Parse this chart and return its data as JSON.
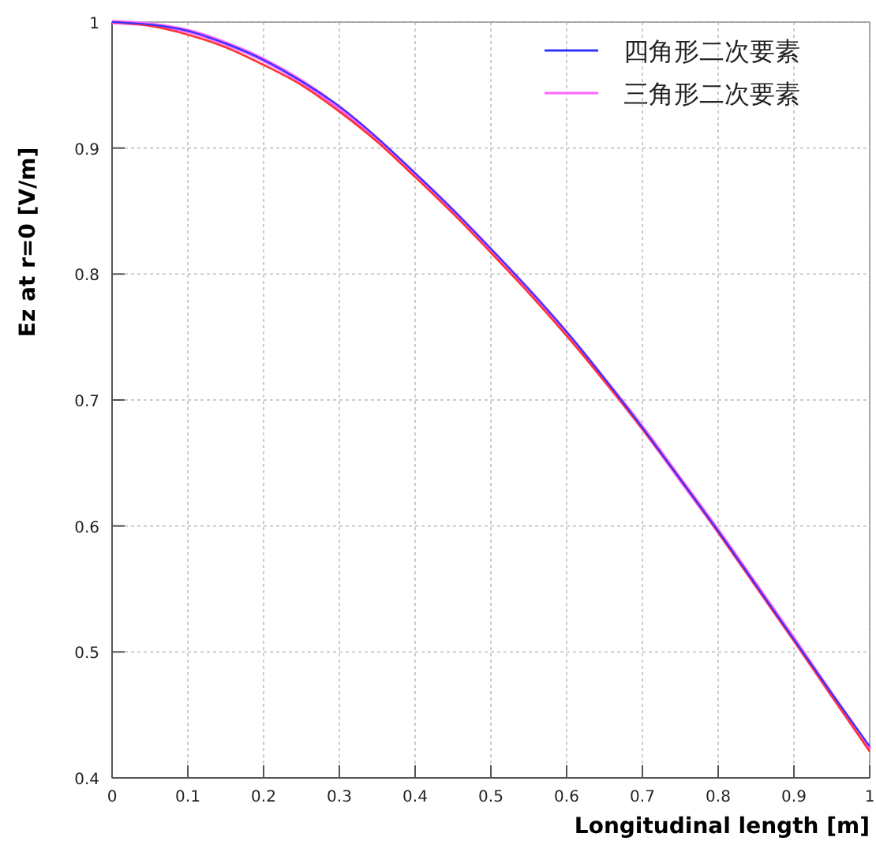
{
  "chart_data": {
    "type": "line",
    "xlabel": "Longitudinal length [m]",
    "ylabel": "Ez at r=0 [V/m]",
    "x": [
      0,
      0.05,
      0.1,
      0.15,
      0.2,
      0.25,
      0.3,
      0.35,
      0.4,
      0.45,
      0.5,
      0.55,
      0.6,
      0.65,
      0.7,
      0.75,
      0.8,
      0.85,
      0.9,
      0.95,
      1
    ],
    "series": [
      {
        "name": "四角形二次要素",
        "color": "#3333ff",
        "values": [
          1,
          0.998,
          0.993,
          0.983,
          0.97,
          0.953,
          0.933,
          0.908,
          0.88,
          0.851,
          0.82,
          0.788,
          0.754,
          0.717,
          0.678,
          0.637,
          0.596,
          0.553,
          0.51,
          0.467,
          0.425
        ]
      },
      {
        "name": "三角形二次要素",
        "color": "#ff66ff",
        "values": [
          1,
          0.998,
          0.993,
          0.983,
          0.97,
          0.953,
          0.932,
          0.907,
          0.879,
          0.85,
          0.819,
          0.787,
          0.753,
          0.716,
          0.678,
          0.637,
          0.596,
          0.553,
          0.51,
          0.466,
          0.423
        ]
      },
      {
        "color": "#ff3333",
        "values": [
          1,
          0.997,
          0.99,
          0.98,
          0.966,
          0.95,
          0.929,
          0.905,
          0.877,
          0.848,
          0.817,
          0.785,
          0.751,
          0.715,
          0.677,
          0.637,
          0.595,
          0.552,
          0.509,
          0.465,
          0.421
        ]
      }
    ],
    "xlim": [
      0,
      1
    ],
    "xticks": [
      0,
      0.1,
      0.2,
      0.3,
      0.4,
      0.5,
      0.6,
      0.7,
      0.8,
      0.9,
      1
    ],
    "ylim": [
      0.4,
      1
    ],
    "yticks": [
      0.4,
      0.5,
      0.6,
      0.7,
      0.8,
      0.9,
      1
    ],
    "grid": true,
    "legend": "top right",
    "line_style": "solid",
    "marker": "none"
  }
}
